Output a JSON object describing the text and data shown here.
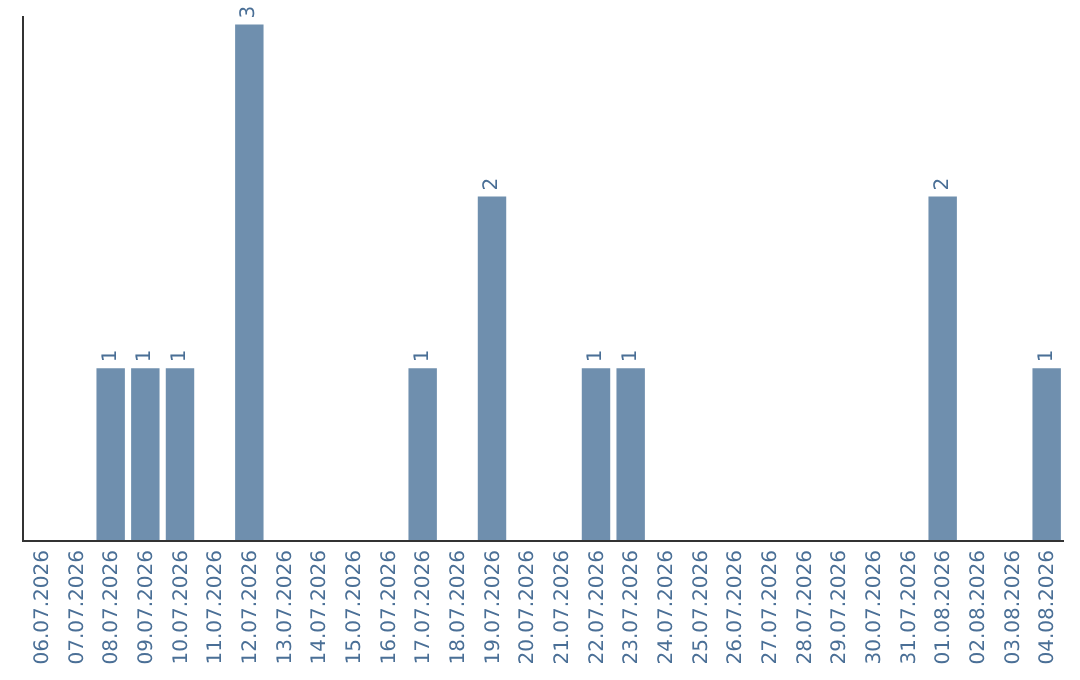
{
  "chart_data": {
    "type": "bar",
    "categories": [
      "06.07.2026",
      "07.07.2026",
      "08.07.2026",
      "09.07.2026",
      "10.07.2026",
      "11.07.2026",
      "12.07.2026",
      "13.07.2026",
      "14.07.2026",
      "15.07.2026",
      "16.07.2026",
      "17.07.2026",
      "18.07.2026",
      "19.07.2026",
      "20.07.2026",
      "21.07.2026",
      "22.07.2026",
      "23.07.2026",
      "24.07.2026",
      "25.07.2026",
      "26.07.2026",
      "27.07.2026",
      "28.07.2026",
      "29.07.2026",
      "30.07.2026",
      "31.07.2026",
      "01.08.2026",
      "02.08.2026",
      "03.08.2026",
      "04.08.2026"
    ],
    "values": [
      0,
      0,
      1,
      1,
      1,
      0,
      3,
      0,
      0,
      0,
      0,
      1,
      0,
      2,
      0,
      0,
      1,
      1,
      0,
      0,
      0,
      0,
      0,
      0,
      0,
      0,
      2,
      0,
      0,
      1
    ],
    "value_labels": [
      null,
      null,
      "1",
      "1",
      "1",
      null,
      "3",
      null,
      null,
      null,
      null,
      "1",
      null,
      "2",
      null,
      null,
      "1",
      "1",
      null,
      null,
      null,
      null,
      null,
      null,
      null,
      null,
      "2",
      null,
      null,
      "1"
    ],
    "color": "#6f8fae",
    "ylim": [
      0,
      3.05
    ],
    "tick_labels": "x"
  }
}
